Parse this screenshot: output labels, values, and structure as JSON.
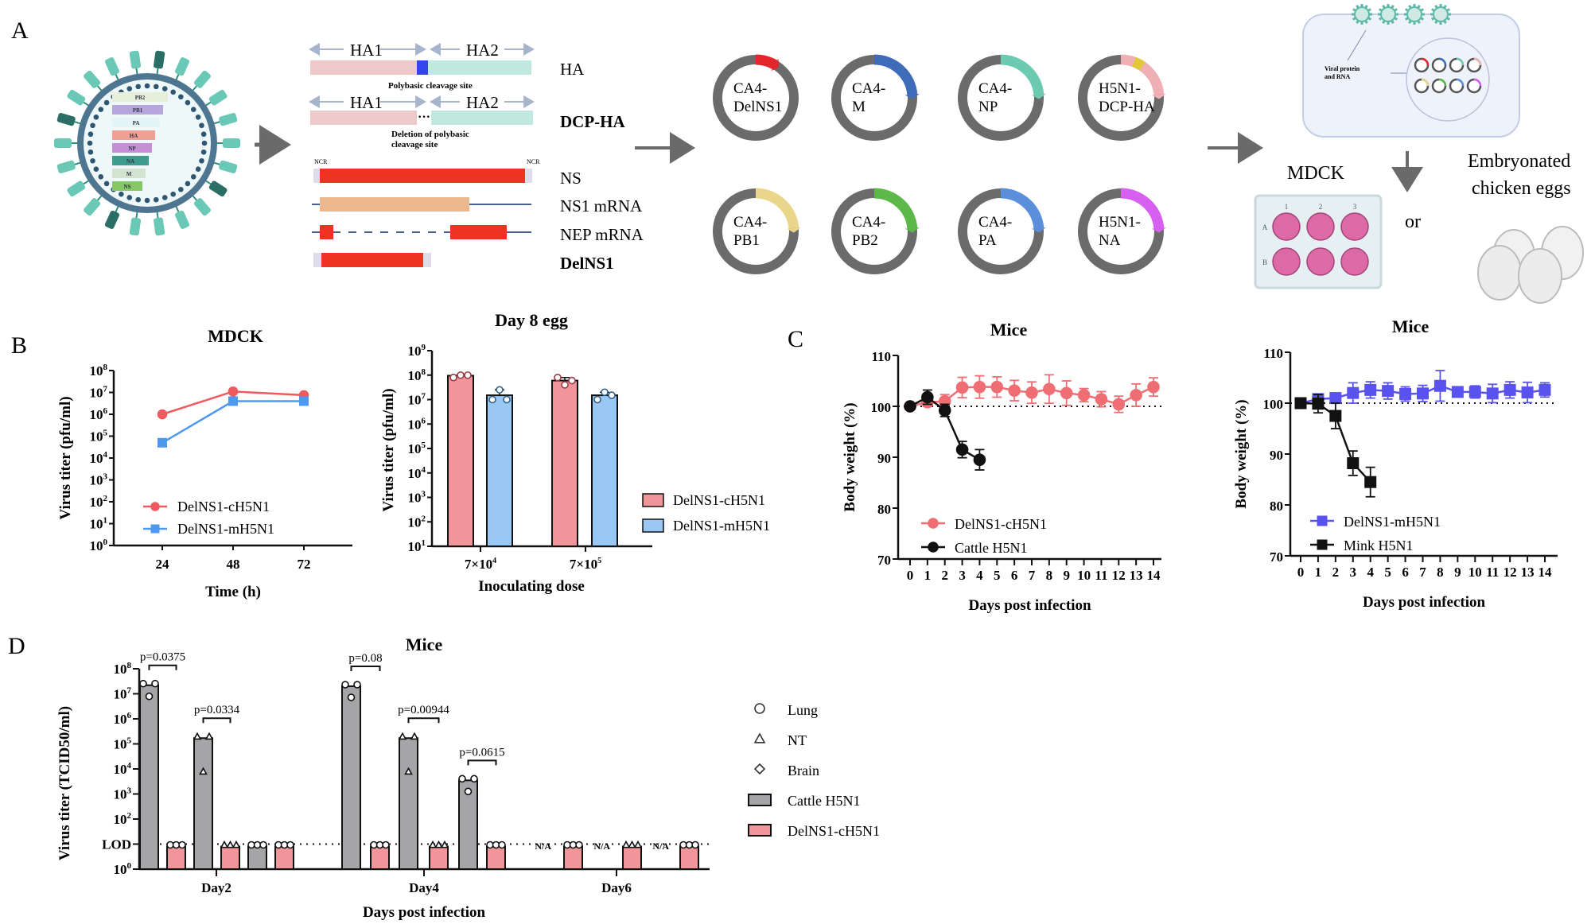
{
  "panels": {
    "A": {
      "letter": "A",
      "virion_segments": [
        "PB2",
        "PB1",
        "PA",
        "HA",
        "NP",
        "NA",
        "M",
        "NS"
      ],
      "virion_segment_colors": [
        "#e6efdc",
        "#b6a6dc",
        "#e4f4f6",
        "#ef9f94",
        "#c48fd4",
        "#3f9c8c",
        "#d2e4d0",
        "#86c868"
      ],
      "ha_diagram": {
        "ha1": "HA1",
        "ha2": "HA2",
        "polybasic_label": "Polybasic cleavage site",
        "deletion_label_line1": "Deletion of polybasic",
        "deletion_label_line2": "cleavage site",
        "ncr_left": "NCR",
        "ncr_right": "NCR",
        "row_labels": [
          {
            "text": "HA",
            "bold": false
          },
          {
            "text": "DCP-HA",
            "bold": true
          },
          {
            "text": "NS",
            "bold": false
          },
          {
            "text": "NS1 mRNA",
            "bold": false
          },
          {
            "text": "NEP mRNA",
            "bold": false
          },
          {
            "text": "DelNS1",
            "bold": true
          }
        ]
      },
      "plasmids": [
        {
          "line1": "CA4-",
          "line2": "DelNS1",
          "color": "#e3262b"
        },
        {
          "line1": "CA4-",
          "line2": "M",
          "color": "#3f6cb8"
        },
        {
          "line1": "CA4-",
          "line2": "NP",
          "color": "#6ccab0"
        },
        {
          "line1": "H5N1-",
          "line2": "DCP-HA",
          "color": "#eeb0b4"
        },
        {
          "line1": "CA4-",
          "line2": "PB1",
          "color": "#ead68a"
        },
        {
          "line1": "CA4-",
          "line2": "PB2",
          "color": "#5cb848"
        },
        {
          "line1": "CA4-",
          "line2": "PA",
          "color": "#5b8fdc"
        },
        {
          "line1": "H5N1-",
          "line2": "NA",
          "color": "#d860f0"
        }
      ],
      "cell_label_line1": "Viral protein",
      "cell_label_line2": "and RNA",
      "mdck_label": "MDCK",
      "plate_cols": [
        "1",
        "2",
        "3"
      ],
      "plate_rows": [
        "A",
        "B"
      ],
      "or_label": "or",
      "eggs_label_line1": "Embryonated",
      "eggs_label_line2": "chicken eggs"
    },
    "B": {
      "letter": "B"
    },
    "C": {
      "letter": "C"
    },
    "D": {
      "letter": "D"
    }
  },
  "chart_data": [
    {
      "id": "mdck",
      "type": "line",
      "title": "MDCK",
      "xlabel": "Time (h)",
      "ylabel": "Virus titer (pfu/ml)",
      "yscale": "log10",
      "ylim": [
        1,
        100000000
      ],
      "yticks": [
        "10⁰",
        "10¹",
        "10²",
        "10³",
        "10⁴",
        "10⁵",
        "10⁶",
        "10⁷",
        "10⁸"
      ],
      "x": [
        24,
        48,
        72
      ],
      "xticks": [
        "24",
        "48",
        "72"
      ],
      "legend_position": "lower-center",
      "series": [
        {
          "name": "DelNS1-cH5N1",
          "color": "#ee5a5f",
          "marker": "circle",
          "values": [
            1000000,
            11000000,
            7500000
          ]
        },
        {
          "name": "DelNS1-mH5N1",
          "color": "#4e98ee",
          "marker": "square",
          "values": [
            50000,
            4000000,
            4000000
          ]
        }
      ]
    },
    {
      "id": "egg",
      "type": "bar",
      "title": "Day 8 egg",
      "xlabel": "Inoculating dose",
      "ylabel": "Virus titer (pfu/ml)",
      "yscale": "log10",
      "ylim": [
        10,
        1000000000
      ],
      "yticks": [
        "10¹",
        "10²",
        "10³",
        "10⁴",
        "10⁵",
        "10⁶",
        "10⁷",
        "10⁸",
        "10⁹"
      ],
      "categories": [
        "7×10⁴",
        "7×10⁵"
      ],
      "legend_position": "right",
      "series": [
        {
          "name": "DelNS1-cH5N1",
          "color": "#f0969b",
          "values": [
            95000000,
            60000000
          ],
          "points": [
            [
              80000000,
              100000000,
              100000000
            ],
            [
              80000000,
              40000000,
              60000000
            ]
          ]
        },
        {
          "name": "DelNS1-mH5N1",
          "color": "#99c8f4",
          "values": [
            15000000,
            15000000
          ],
          "points": [
            [
              10000000,
              25000000,
              10000000
            ],
            [
              10000000,
              20000000,
              15000000
            ]
          ]
        }
      ]
    },
    {
      "id": "mice-cattle",
      "type": "line",
      "title": "Mice",
      "xlabel": "Days post infection",
      "ylabel": "Body weight (%)",
      "ylim": [
        70,
        110
      ],
      "yticks": [
        "70",
        "80",
        "90",
        "100",
        "110"
      ],
      "x": [
        0,
        1,
        2,
        3,
        4,
        5,
        6,
        7,
        8,
        9,
        10,
        11,
        12,
        13,
        14
      ],
      "reference_line": 100,
      "legend_position": "lower-left",
      "series": [
        {
          "name": "DelNS1-cH5N1",
          "color": "#ee6e74",
          "marker": "circle",
          "values": [
            100,
            100.8,
            101,
            103.7,
            103.8,
            103.8,
            103.1,
            102.7,
            103.4,
            102.6,
            102.2,
            101.4,
            100.4,
            102.2,
            103.8
          ],
          "errors": [
            0,
            0.8,
            1.3,
            2.0,
            2.2,
            2.0,
            2.0,
            2.1,
            2.8,
            2.4,
            1.3,
            1.5,
            1.6,
            2.2,
            1.8
          ]
        },
        {
          "name": "Cattle H5N1",
          "color": "#111111",
          "marker": "circle",
          "values": [
            100,
            101.8,
            99.2,
            91.5,
            89.5
          ],
          "errors": [
            0,
            1.4,
            1.2,
            1.6,
            2.0
          ]
        }
      ]
    },
    {
      "id": "mice-mink",
      "type": "line",
      "title": "Mice",
      "xlabel": "Days post infection",
      "ylabel": "Body weight (%)",
      "ylim": [
        70,
        110
      ],
      "yticks": [
        "70",
        "80",
        "90",
        "100",
        "110"
      ],
      "x": [
        0,
        1,
        2,
        3,
        4,
        5,
        6,
        7,
        8,
        9,
        10,
        11,
        12,
        13,
        14
      ],
      "reference_line": 100,
      "legend_position": "lower-left",
      "series": [
        {
          "name": "DelNS1-mH5N1",
          "color": "#5a52ee",
          "marker": "square",
          "values": [
            100,
            100.8,
            101,
            102,
            102.6,
            102.4,
            101.8,
            101.9,
            103.4,
            102.2,
            102.2,
            101.9,
            102.6,
            102.1,
            102.6
          ],
          "errors": [
            0,
            1.0,
            1.0,
            2.0,
            1.6,
            1.6,
            1.4,
            1.6,
            3.0,
            0.8,
            1.2,
            1.8,
            1.6,
            2.0,
            1.4
          ]
        },
        {
          "name": "Mink H5N1",
          "color": "#111111",
          "marker": "square",
          "values": [
            100,
            99.9,
            97.5,
            88.2,
            84.5
          ],
          "errors": [
            0,
            1.8,
            2.5,
            2.4,
            2.9
          ]
        }
      ]
    },
    {
      "id": "mice-titer",
      "type": "bar",
      "title": "Mice",
      "xlabel": "Days post infection",
      "ylabel": "Virus titer (TCID50/ml)",
      "yscale": "log10",
      "ylim": [
        1,
        100000000
      ],
      "yticks": [
        "10⁰",
        "LOD",
        "10²",
        "10³",
        "10⁴",
        "10⁵",
        "10⁶",
        "10⁷",
        "10⁸"
      ],
      "lod": 10,
      "categories": [
        "Day2",
        "Day4",
        "Day6"
      ],
      "tissues": [
        "Lung",
        "NT",
        "Brain"
      ],
      "legend_position": "right",
      "legend": [
        {
          "label": "Lung",
          "symbol": "circle"
        },
        {
          "label": "NT",
          "symbol": "triangle"
        },
        {
          "label": "Brain",
          "symbol": "diamond"
        },
        {
          "label": "Cattle H5N1",
          "symbol": "bar",
          "color": "#a5a5a7"
        },
        {
          "label": "DelNS1-cH5N1",
          "symbol": "bar",
          "color": "#f0969b"
        }
      ],
      "bars": [
        {
          "day": "Day2",
          "tissue": "Lung",
          "group": "Cattle H5N1",
          "value": 22000000,
          "marker": "circle"
        },
        {
          "day": "Day2",
          "tissue": "Lung",
          "group": "DelNS1-cH5N1",
          "value": 8,
          "marker": "circle"
        },
        {
          "day": "Day2",
          "tissue": "NT",
          "group": "Cattle H5N1",
          "value": 170000,
          "marker": "triangle"
        },
        {
          "day": "Day2",
          "tissue": "NT",
          "group": "DelNS1-cH5N1",
          "value": 8,
          "marker": "triangle"
        },
        {
          "day": "Day2",
          "tissue": "Brain",
          "group": "Cattle H5N1",
          "value": 8,
          "marker": "circle"
        },
        {
          "day": "Day2",
          "tissue": "Brain",
          "group": "DelNS1-cH5N1",
          "value": 8,
          "marker": "circle"
        },
        {
          "day": "Day4",
          "tissue": "Lung",
          "group": "Cattle H5N1",
          "value": 20000000,
          "marker": "circle"
        },
        {
          "day": "Day4",
          "tissue": "Lung",
          "group": "DelNS1-cH5N1",
          "value": 8,
          "marker": "circle"
        },
        {
          "day": "Day4",
          "tissue": "NT",
          "group": "Cattle H5N1",
          "value": 170000,
          "marker": "triangle"
        },
        {
          "day": "Day4",
          "tissue": "NT",
          "group": "DelNS1-cH5N1",
          "value": 8,
          "marker": "triangle"
        },
        {
          "day": "Day4",
          "tissue": "Brain",
          "group": "Cattle H5N1",
          "value": 3500,
          "marker": "circle"
        },
        {
          "day": "Day4",
          "tissue": "Brain",
          "group": "DelNS1-cH5N1",
          "value": 8,
          "marker": "circle"
        },
        {
          "day": "Day6",
          "tissue": "Lung",
          "group": "Cattle H5N1",
          "value": null,
          "note": "N/A"
        },
        {
          "day": "Day6",
          "tissue": "Lung",
          "group": "DelNS1-cH5N1",
          "value": 8,
          "marker": "circle"
        },
        {
          "day": "Day6",
          "tissue": "NT",
          "group": "Cattle H5N1",
          "value": null,
          "note": "N/A"
        },
        {
          "day": "Day6",
          "tissue": "NT",
          "group": "DelNS1-cH5N1",
          "value": 8,
          "marker": "triangle"
        },
        {
          "day": "Day6",
          "tissue": "Brain",
          "group": "Cattle H5N1",
          "value": null,
          "note": "N/A"
        },
        {
          "day": "Day6",
          "tissue": "Brain",
          "group": "DelNS1-cH5N1",
          "value": 8,
          "marker": "circle"
        }
      ],
      "pvalues": [
        {
          "day": "Day2",
          "tissue": "Lung",
          "text": "p=0.0375"
        },
        {
          "day": "Day2",
          "tissue": "NT",
          "text": "p=0.0334"
        },
        {
          "day": "Day4",
          "tissue": "Lung",
          "text": "p=0.08"
        },
        {
          "day": "Day4",
          "tissue": "NT",
          "text": "p=0.00944"
        },
        {
          "day": "Day4",
          "tissue": "Brain",
          "text": "p=0.0615"
        }
      ],
      "na_label": "N/A"
    }
  ]
}
